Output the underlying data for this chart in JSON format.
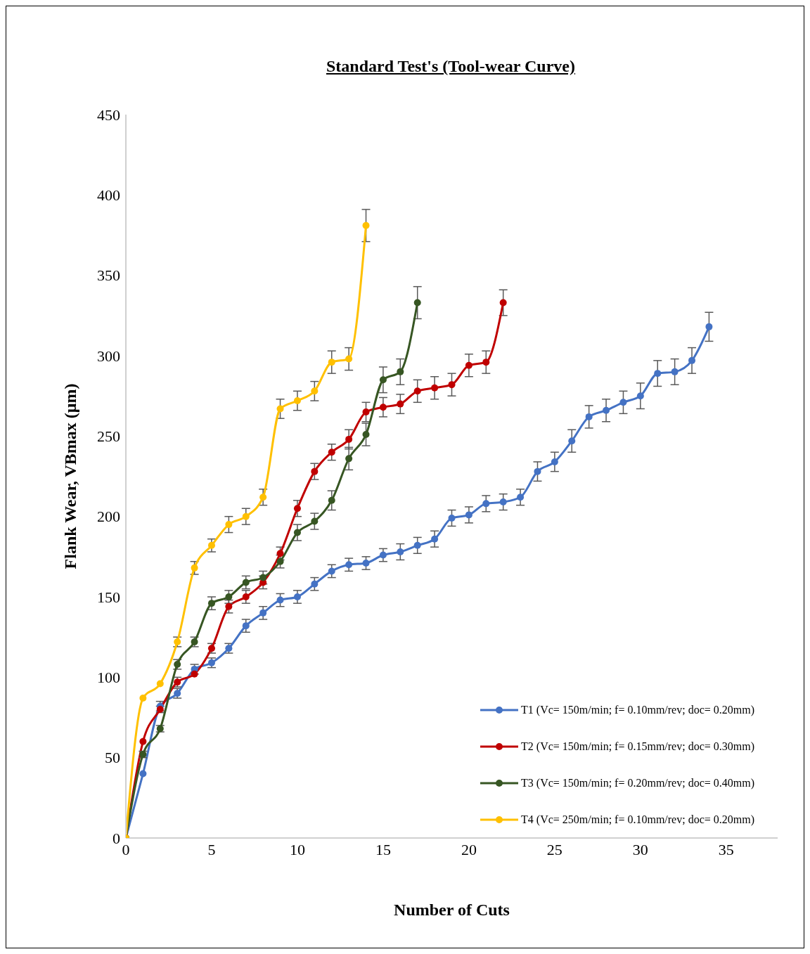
{
  "chart_data": {
    "type": "line",
    "title": "Standard Test's (Tool-wear Curve)",
    "xlabel": "Number of Cuts",
    "ylabel": "Flank Wear, VBmax (μm)",
    "xlim": [
      0,
      38
    ],
    "xticks": [
      0,
      5,
      10,
      15,
      20,
      25,
      30,
      35
    ],
    "ylim": [
      0,
      450
    ],
    "yticks": [
      0,
      50,
      100,
      150,
      200,
      250,
      300,
      350,
      400,
      450
    ],
    "grid": false,
    "legend": "bottom right",
    "marker": "circle",
    "line_style": "solid",
    "series": [
      {
        "name": "T1 (Vc= 150m/min; f= 0.10mm/rev; doc= 0.20mm)",
        "color": "#4472c4",
        "x": [
          0,
          1,
          2,
          3,
          4,
          5,
          6,
          7,
          8,
          9,
          10,
          11,
          12,
          13,
          14,
          15,
          16,
          17,
          18,
          19,
          20,
          21,
          22,
          23,
          24,
          25,
          26,
          27,
          28,
          29,
          30,
          31,
          32,
          33,
          34
        ],
        "values": [
          0,
          40,
          82,
          90,
          105,
          109,
          118,
          132,
          140,
          148,
          150,
          158,
          166,
          170,
          171,
          176,
          178,
          182,
          186,
          199,
          201,
          208,
          209,
          212,
          228,
          234,
          247,
          262,
          266,
          271,
          275,
          289,
          290,
          297,
          318
        ],
        "errors": [
          0,
          null,
          3,
          3,
          3,
          3,
          3,
          4,
          4,
          4,
          4,
          4,
          4,
          4,
          4,
          4,
          5,
          5,
          5,
          5,
          5,
          5,
          5,
          5,
          6,
          6,
          7,
          7,
          7,
          7,
          8,
          8,
          8,
          8,
          9
        ]
      },
      {
        "name": "T2 (Vc= 150m/min; f= 0.15mm/rev; doc= 0.30mm)",
        "color": "#c00000",
        "x": [
          0,
          1,
          2,
          3,
          4,
          5,
          6,
          7,
          8,
          9,
          10,
          11,
          12,
          13,
          14,
          15,
          16,
          17,
          18,
          19,
          20,
          21,
          22
        ],
        "values": [
          0,
          60,
          80,
          97,
          102,
          118,
          144,
          150,
          159,
          177,
          205,
          228,
          240,
          248,
          265,
          268,
          270,
          278,
          280,
          282,
          294,
          296,
          333
        ],
        "errors": [
          0,
          null,
          2,
          3,
          null,
          3,
          4,
          4,
          4,
          4,
          5,
          5,
          5,
          6,
          6,
          6,
          6,
          7,
          7,
          7,
          7,
          7,
          8
        ]
      },
      {
        "name": "T3 (Vc= 150m/min; f= 0.20mm/rev; doc= 0.40mm)",
        "color": "#375623",
        "x": [
          0,
          1,
          2,
          3,
          4,
          5,
          6,
          7,
          8,
          9,
          10,
          11,
          12,
          13,
          14,
          15,
          16,
          17
        ],
        "values": [
          0,
          52,
          68,
          108,
          122,
          146,
          150,
          159,
          162,
          172,
          190,
          197,
          210,
          236,
          251,
          285,
          290,
          333
        ],
        "errors": [
          0,
          2,
          2,
          3,
          3,
          4,
          4,
          4,
          4,
          4,
          5,
          5,
          6,
          7,
          7,
          8,
          8,
          10
        ]
      },
      {
        "name": "T4 (Vc= 250m/min; f= 0.10mm/rev; doc= 0.20mm)",
        "color": "#ffc000",
        "x": [
          0,
          1,
          2,
          3,
          4,
          5,
          6,
          7,
          8,
          9,
          10,
          11,
          12,
          13,
          14
        ],
        "values": [
          0,
          87,
          96,
          122,
          168,
          182,
          195,
          200,
          212,
          267,
          272,
          278,
          296,
          298,
          381
        ],
        "errors": [
          0,
          null,
          null,
          3,
          4,
          4,
          5,
          5,
          5,
          6,
          6,
          6,
          7,
          7,
          10
        ]
      }
    ]
  }
}
